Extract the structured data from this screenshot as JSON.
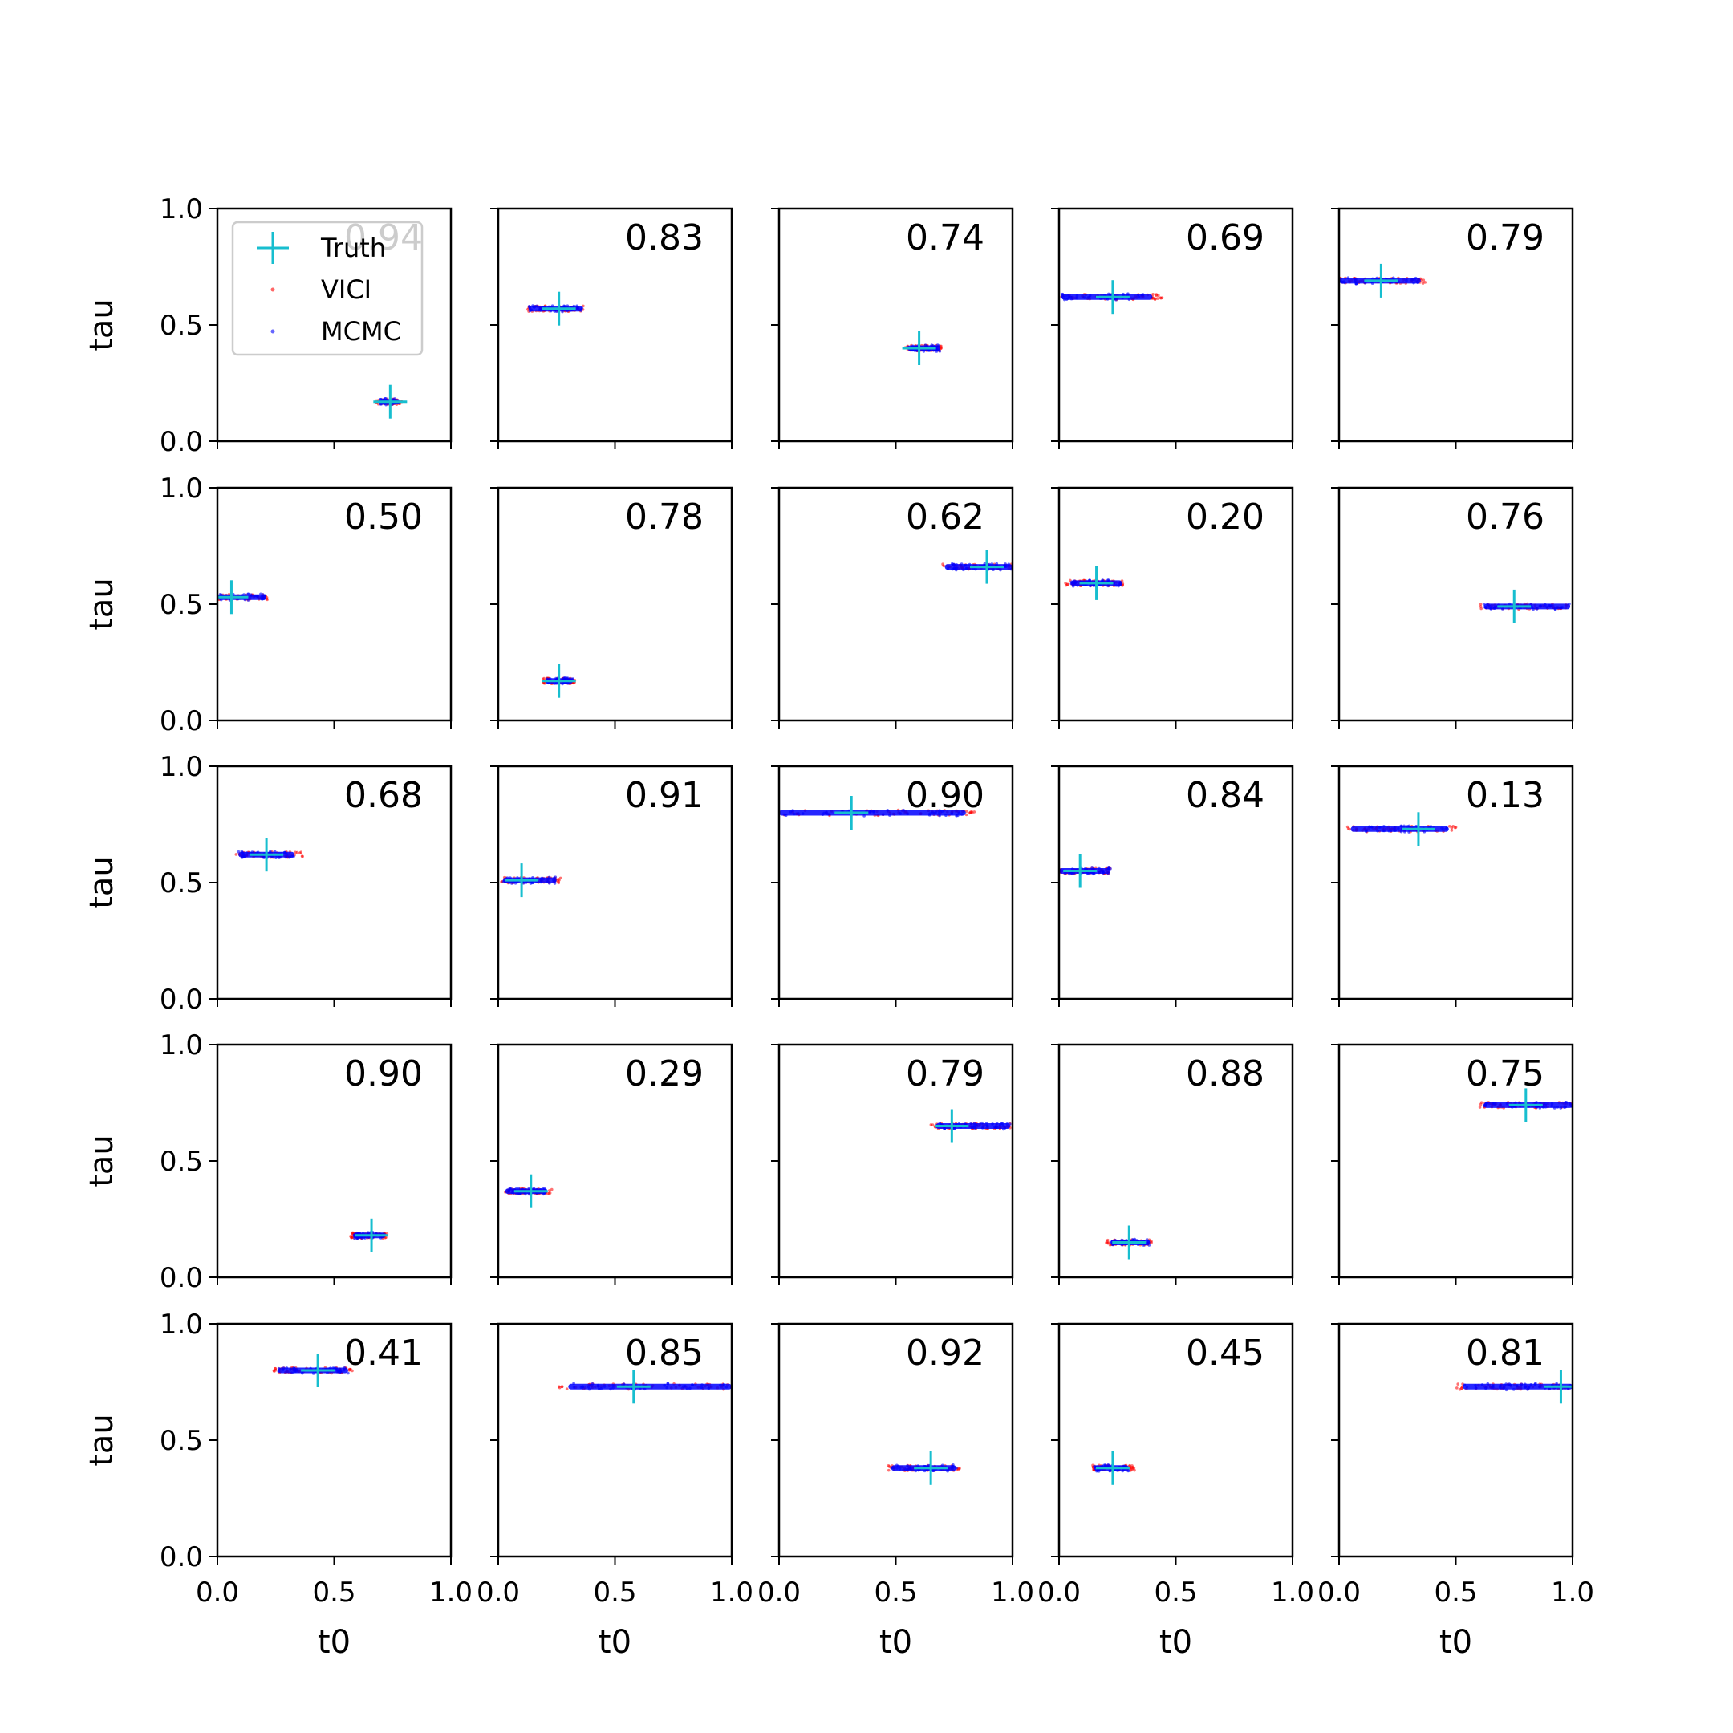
{
  "chart_data": {
    "type": "scatter",
    "layout": {
      "rows": 5,
      "cols": 5
    },
    "xlabel": "t0",
    "ylabel": "tau",
    "xlim": [
      0,
      1
    ],
    "ylim": [
      0,
      1
    ],
    "xticks": [
      "0.0",
      "0.5",
      "1.0"
    ],
    "yticks": [
      "0.0",
      "0.5",
      "1.0"
    ],
    "legend": {
      "placement": "top-left of first panel",
      "entries": [
        {
          "label": "Truth",
          "marker": "plus",
          "color": "#17becf"
        },
        {
          "label": "VICI",
          "marker": "dot",
          "color": "#ff0000"
        },
        {
          "label": "MCMC",
          "marker": "dot",
          "color": "#0000ff"
        }
      ]
    },
    "colors": {
      "truth": "#17becf",
      "vici": "#ff0000",
      "mcmc": "#0000ff"
    },
    "panels": [
      {
        "score": "0.94",
        "truth": [
          0.74,
          0.17
        ],
        "vici": {
          "x": [
            0.68,
            0.79
          ],
          "y": 0.17
        },
        "mcmc": {
          "x": [
            0.69,
            0.78
          ],
          "y": 0.17
        }
      },
      {
        "score": "0.83",
        "truth": [
          0.26,
          0.57
        ],
        "vici": {
          "x": [
            0.12,
            0.37
          ],
          "y": 0.57
        },
        "mcmc": {
          "x": [
            0.13,
            0.36
          ],
          "y": 0.57
        }
      },
      {
        "score": "0.74",
        "truth": [
          0.6,
          0.4
        ],
        "vici": {
          "x": [
            0.54,
            0.7
          ],
          "y": 0.4
        },
        "mcmc": {
          "x": [
            0.55,
            0.69
          ],
          "y": 0.4
        }
      },
      {
        "score": "0.69",
        "truth": [
          0.23,
          0.62
        ],
        "vici": {
          "x": [
            0.01,
            0.45
          ],
          "y": 0.62
        },
        "mcmc": {
          "x": [
            0.01,
            0.4
          ],
          "y": 0.62
        }
      },
      {
        "score": "0.79",
        "truth": [
          0.18,
          0.69
        ],
        "vici": {
          "x": [
            0.0,
            0.37
          ],
          "y": 0.69
        },
        "mcmc": {
          "x": [
            0.0,
            0.35
          ],
          "y": 0.69
        }
      },
      {
        "score": "0.50",
        "truth": [
          0.06,
          0.53
        ],
        "vici": {
          "x": [
            0.0,
            0.22
          ],
          "y": 0.53
        },
        "mcmc": {
          "x": [
            0.0,
            0.21
          ],
          "y": 0.53
        }
      },
      {
        "score": "0.78",
        "truth": [
          0.26,
          0.17
        ],
        "vici": {
          "x": [
            0.19,
            0.33
          ],
          "y": 0.17
        },
        "mcmc": {
          "x": [
            0.2,
            0.32
          ],
          "y": 0.17
        }
      },
      {
        "score": "0.62",
        "truth": [
          0.89,
          0.66
        ],
        "vici": {
          "x": [
            0.7,
            1.0
          ],
          "y": 0.66
        },
        "mcmc": {
          "x": [
            0.71,
            1.0
          ],
          "y": 0.66
        }
      },
      {
        "score": "0.20",
        "truth": [
          0.16,
          0.59
        ],
        "vici": {
          "x": [
            0.02,
            0.28
          ],
          "y": 0.59
        },
        "mcmc": {
          "x": [
            0.05,
            0.27
          ],
          "y": 0.59
        }
      },
      {
        "score": "0.76",
        "truth": [
          0.75,
          0.49
        ],
        "vici": {
          "x": [
            0.6,
            0.98
          ],
          "y": 0.49
        },
        "mcmc": {
          "x": [
            0.62,
            0.99
          ],
          "y": 0.49
        }
      },
      {
        "score": "0.68",
        "truth": [
          0.21,
          0.62
        ],
        "vici": {
          "x": [
            0.08,
            0.37
          ],
          "y": 0.62
        },
        "mcmc": {
          "x": [
            0.09,
            0.33
          ],
          "y": 0.62
        }
      },
      {
        "score": "0.91",
        "truth": [
          0.1,
          0.51
        ],
        "vici": {
          "x": [
            0.01,
            0.27
          ],
          "y": 0.51
        },
        "mcmc": {
          "x": [
            0.02,
            0.25
          ],
          "y": 0.51
        }
      },
      {
        "score": "0.90",
        "truth": [
          0.31,
          0.8
        ],
        "vici": {
          "x": [
            0.0,
            0.84
          ],
          "y": 0.8
        },
        "mcmc": {
          "x": [
            0.0,
            0.8
          ],
          "y": 0.8
        }
      },
      {
        "score": "0.84",
        "truth": [
          0.09,
          0.55
        ],
        "vici": {
          "x": [
            0.0,
            0.22
          ],
          "y": 0.55
        },
        "mcmc": {
          "x": [
            0.0,
            0.22
          ],
          "y": 0.55
        }
      },
      {
        "score": "0.13",
        "truth": [
          0.34,
          0.73
        ],
        "vici": {
          "x": [
            0.03,
            0.51
          ],
          "y": 0.73
        },
        "mcmc": {
          "x": [
            0.05,
            0.47
          ],
          "y": 0.73
        }
      },
      {
        "score": "0.90",
        "truth": [
          0.66,
          0.18
        ],
        "vici": {
          "x": [
            0.57,
            0.73
          ],
          "y": 0.18
        },
        "mcmc": {
          "x": [
            0.58,
            0.72
          ],
          "y": 0.18
        }
      },
      {
        "score": "0.29",
        "truth": [
          0.14,
          0.37
        ],
        "vici": {
          "x": [
            0.03,
            0.23
          ],
          "y": 0.37
        },
        "mcmc": {
          "x": [
            0.03,
            0.21
          ],
          "y": 0.37
        }
      },
      {
        "score": "0.79",
        "truth": [
          0.74,
          0.65
        ],
        "vici": {
          "x": [
            0.65,
            0.99
          ],
          "y": 0.65
        },
        "mcmc": {
          "x": [
            0.67,
            0.99
          ],
          "y": 0.65
        }
      },
      {
        "score": "0.88",
        "truth": [
          0.3,
          0.15
        ],
        "vici": {
          "x": [
            0.2,
            0.4
          ],
          "y": 0.15
        },
        "mcmc": {
          "x": [
            0.22,
            0.39
          ],
          "y": 0.15
        }
      },
      {
        "score": "0.75",
        "truth": [
          0.8,
          0.74
        ],
        "vici": {
          "x": [
            0.6,
            1.0
          ],
          "y": 0.74
        },
        "mcmc": {
          "x": [
            0.62,
            1.0
          ],
          "y": 0.74
        }
      },
      {
        "score": "0.41",
        "truth": [
          0.43,
          0.8
        ],
        "vici": {
          "x": [
            0.24,
            0.58
          ],
          "y": 0.8
        },
        "mcmc": {
          "x": [
            0.26,
            0.56
          ],
          "y": 0.8
        }
      },
      {
        "score": "0.85",
        "truth": [
          0.58,
          0.73
        ],
        "vici": {
          "x": [
            0.26,
            1.0
          ],
          "y": 0.73
        },
        "mcmc": {
          "x": [
            0.3,
            1.0
          ],
          "y": 0.73
        }
      },
      {
        "score": "0.92",
        "truth": [
          0.65,
          0.38
        ],
        "vici": {
          "x": [
            0.46,
            0.78
          ],
          "y": 0.38
        },
        "mcmc": {
          "x": [
            0.48,
            0.76
          ],
          "y": 0.38
        }
      },
      {
        "score": "0.45",
        "truth": [
          0.23,
          0.38
        ],
        "vici": {
          "x": [
            0.14,
            0.33
          ],
          "y": 0.38
        },
        "mcmc": {
          "x": [
            0.15,
            0.3
          ],
          "y": 0.38
        }
      },
      {
        "score": "0.81",
        "truth": [
          0.95,
          0.73
        ],
        "vici": {
          "x": [
            0.5,
            1.0
          ],
          "y": 0.73
        },
        "mcmc": {
          "x": [
            0.53,
            1.0
          ],
          "y": 0.73
        }
      }
    ]
  }
}
